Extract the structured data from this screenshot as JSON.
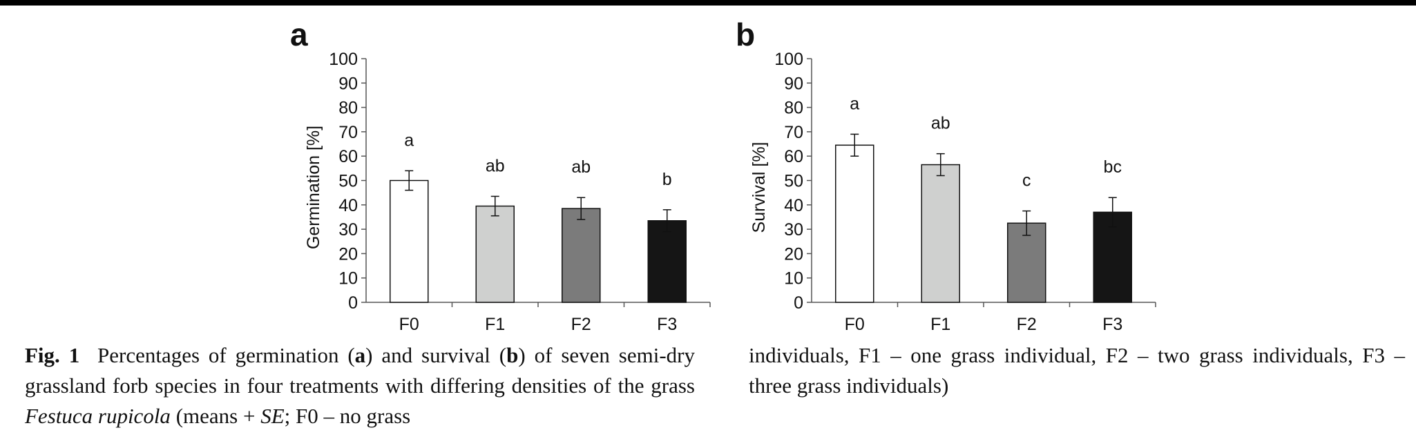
{
  "chart_data": [
    {
      "type": "bar",
      "panel_label": "a",
      "ylabel": "Germination [%]",
      "xlabel": "",
      "ylim": [
        0,
        100
      ],
      "yticks": [
        0,
        10,
        20,
        30,
        40,
        50,
        60,
        70,
        80,
        90,
        100
      ],
      "categories": [
        "F0",
        "F1",
        "F2",
        "F3"
      ],
      "values": [
        50,
        39.5,
        38.5,
        33.5
      ],
      "errors": [
        4,
        4,
        4.5,
        4.5
      ],
      "significance": [
        "a",
        "ab",
        "ab",
        "b"
      ],
      "colors": [
        "#ffffff",
        "#cfd0cf",
        "#7b7b7b",
        "#151515"
      ],
      "grid": false
    },
    {
      "type": "bar",
      "panel_label": "b",
      "ylabel": "Survival [%]",
      "xlabel": "",
      "ylim": [
        0,
        100
      ],
      "yticks": [
        0,
        10,
        20,
        30,
        40,
        50,
        60,
        70,
        80,
        90,
        100
      ],
      "categories": [
        "F0",
        "F1",
        "F2",
        "F3"
      ],
      "values": [
        64.5,
        56.5,
        32.5,
        37
      ],
      "errors": [
        4.5,
        4.5,
        5,
        6
      ],
      "significance": [
        "a",
        "ab",
        "c",
        "bc"
      ],
      "colors": [
        "#ffffff",
        "#cfd0cf",
        "#7b7b7b",
        "#151515"
      ],
      "grid": false
    }
  ],
  "caption": {
    "fig_label": "Fig. 1",
    "part1": "Percentages of germination (",
    "bold_a": "a",
    "part2": ") and survival (",
    "bold_b": "b",
    "part3": ") of seven semi-dry grassland forb species in four treatments with differing densities of the grass ",
    "species": "Festuca rupicola",
    "part4": " (means + ",
    "se": "SE",
    "part5": "; F0 – no grass",
    "continuation": "individuals, F1 – one grass individual, F2 – two grass individuals, F3 – three grass individuals)"
  }
}
